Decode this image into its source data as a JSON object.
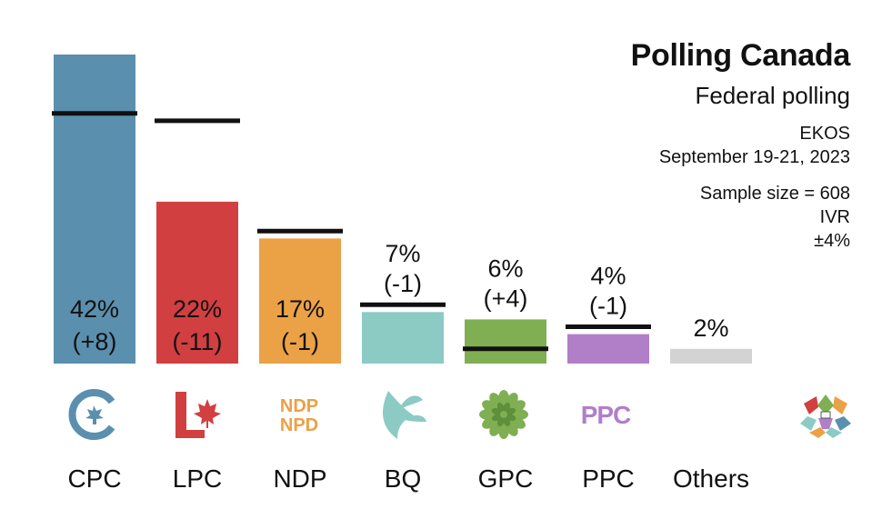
{
  "header": {
    "title": "Polling Canada",
    "subtitle": "Federal polling",
    "pollster": "EKOS",
    "dates": "September 19-21, 2023",
    "sample": "Sample size = 608",
    "method": "IVR",
    "margin": "±4%"
  },
  "logos": {
    "ndp_line1": "NDP",
    "ndp_line2": "NPD",
    "ppc": "PPC"
  },
  "chart_data": {
    "type": "bar",
    "title": "Polling Canada",
    "subtitle": "Federal polling",
    "categories": [
      "CPC",
      "LPC",
      "NDP",
      "BQ",
      "GPC",
      "PPC",
      "Others"
    ],
    "values": [
      42,
      22,
      17,
      7,
      6,
      4,
      2
    ],
    "changes": [
      "(+8)",
      "(-11)",
      "(-1)",
      "(-1)",
      "(+4)",
      "(-1)",
      null
    ],
    "previous_values": [
      34,
      33,
      18,
      8,
      2,
      5,
      null
    ],
    "value_labels": [
      "42%",
      "22%",
      "17%",
      "7%",
      "6%",
      "4%",
      "2%"
    ],
    "colors": [
      "#5b8fae",
      "#d13f40",
      "#eba146",
      "#8bcbc4",
      "#7faf52",
      "#b17ec8",
      "#d3d3d3"
    ],
    "ylim": [
      0,
      42
    ],
    "grid": false
  }
}
